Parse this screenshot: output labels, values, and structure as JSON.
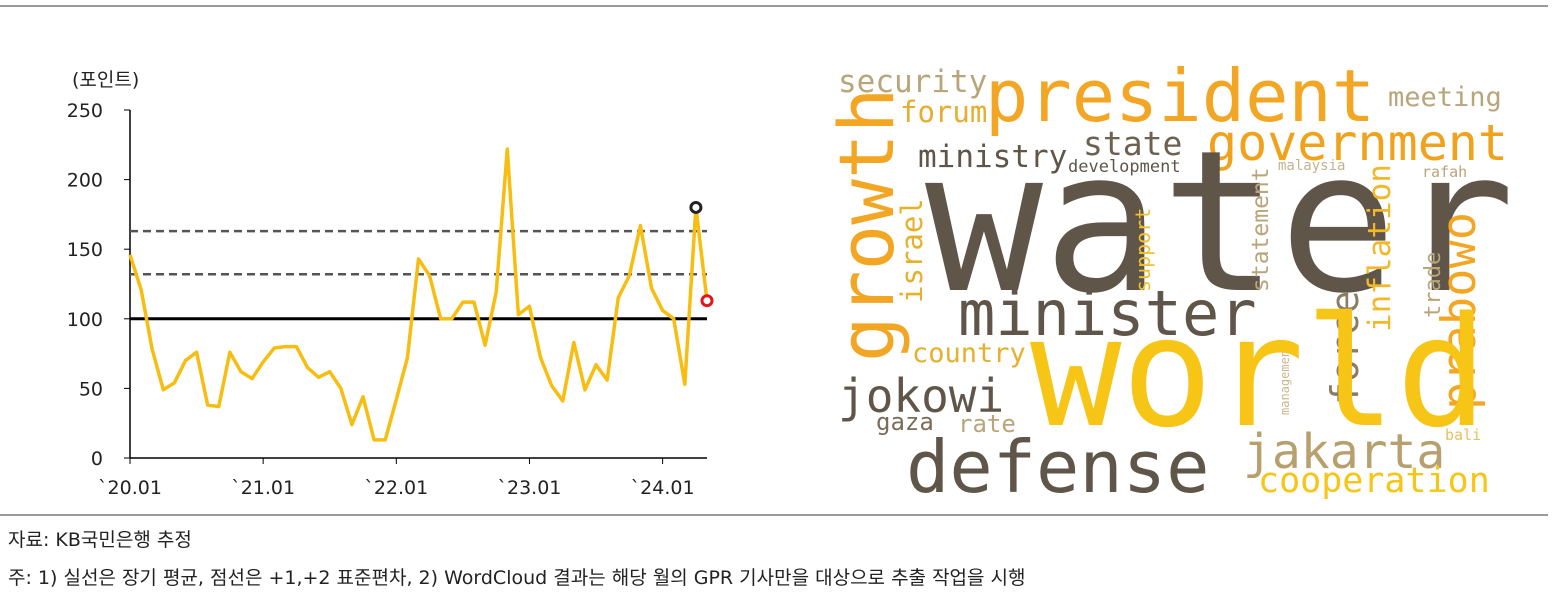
{
  "chart_data": {
    "type": "line",
    "y_label": "(포인트)",
    "categories": [
      "`20.01",
      null,
      null,
      null,
      null,
      null,
      null,
      null,
      null,
      null,
      null,
      null,
      "`21.01",
      null,
      null,
      null,
      null,
      null,
      null,
      null,
      null,
      null,
      null,
      null,
      "`22.01",
      null,
      null,
      null,
      null,
      null,
      null,
      null,
      null,
      null,
      null,
      null,
      "`23.01",
      null,
      null,
      null,
      null,
      null,
      null,
      null,
      null,
      null,
      null,
      null,
      "`24.01",
      null,
      null,
      null,
      null
    ],
    "series": [
      {
        "color": "#f7bd10",
        "values": [
          146,
          121,
          78,
          49,
          54,
          70,
          76,
          38,
          37,
          76,
          62,
          57,
          69,
          79,
          80,
          80,
          65,
          58,
          62,
          50,
          24,
          44,
          13,
          13,
          42,
          72,
          143,
          131,
          100,
          100,
          112,
          112,
          81,
          119,
          222,
          103,
          109,
          72,
          52,
          41,
          83,
          49,
          67,
          56,
          115,
          131,
          167,
          122,
          106,
          100,
          53,
          180,
          113
        ]
      }
    ],
    "ylim": [
      0,
      250
    ],
    "yticks": [
      0,
      50,
      100,
      150,
      200,
      250
    ],
    "reference_lines": [
      {
        "value": 100,
        "style": "solid",
        "color": "#000000"
      },
      {
        "value": 132,
        "style": "dashed",
        "color": "#555555"
      },
      {
        "value": 163,
        "style": "dashed",
        "color": "#555555"
      }
    ],
    "markers": [
      {
        "index": 51,
        "color": "#222222"
      },
      {
        "index": 52,
        "color": "#e3141b"
      }
    ]
  },
  "word_cloud": {
    "words": [
      {
        "text": "security",
        "color": "#b9a57a"
      },
      {
        "text": "president",
        "color": "#f3a623"
      },
      {
        "text": "meeting",
        "color": "#b9a57a"
      },
      {
        "text": "forum",
        "color": "#e6ad2e"
      },
      {
        "text": "state",
        "color": "#6d6150"
      },
      {
        "text": "government",
        "color": "#f0a21d"
      },
      {
        "text": "ministry",
        "color": "#5f5649"
      },
      {
        "text": "development",
        "color": "#5f5649"
      },
      {
        "text": "malaysia",
        "color": "#c3b28c"
      },
      {
        "text": "rafah",
        "color": "#b9a57a"
      },
      {
        "text": "growth",
        "color": "#f3a623"
      },
      {
        "text": "water",
        "color": "#5f5649"
      },
      {
        "text": "israel",
        "color": "#e6b02a"
      },
      {
        "text": "support",
        "color": "#f2c12e"
      },
      {
        "text": "statement",
        "color": "#b9a57a"
      },
      {
        "text": "inflation",
        "color": "#f2b82a"
      },
      {
        "text": "trade",
        "color": "#b9a57a"
      },
      {
        "text": "prabowo",
        "color": "#f3a623"
      },
      {
        "text": "minister",
        "color": "#5f5649"
      },
      {
        "text": "management",
        "color": "#c9b68e"
      },
      {
        "text": "force",
        "color": "#8c7c62"
      },
      {
        "text": "country",
        "color": "#e6b02a"
      },
      {
        "text": "world",
        "color": "#f7c516"
      },
      {
        "text": "jokowi",
        "color": "#5f5649"
      },
      {
        "text": "gaza",
        "color": "#7a6c58"
      },
      {
        "text": "rate",
        "color": "#b9a57a"
      },
      {
        "text": "bali",
        "color": "#e6c060"
      },
      {
        "text": "jakarta",
        "color": "#b89f6e"
      },
      {
        "text": "defense",
        "color": "#5f5649"
      },
      {
        "text": "cooperation",
        "color": "#f7c516"
      }
    ]
  },
  "notes": {
    "source": "자료: KB국민은행 추정",
    "footnote": "주: 1) 실선은 장기 평균, 점선은 +1,+2 표준편차, 2) WordCloud 결과는 해당 월의 GPR 기사만을 대상으로 추출 작업을 시행"
  }
}
